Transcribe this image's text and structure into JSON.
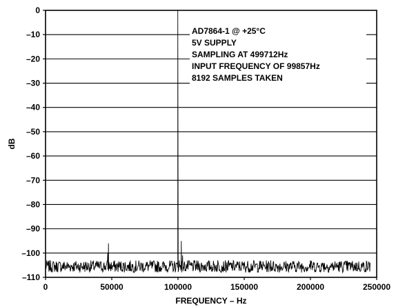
{
  "chart_data": {
    "type": "line",
    "title": "",
    "xlabel": "FREQUENCY – Hz",
    "ylabel": "dB",
    "xlim": [
      0,
      250000
    ],
    "ylim": [
      -110,
      0
    ],
    "grid": "horizontal",
    "x_ticks": [
      0,
      50000,
      100000,
      150000,
      200000,
      250000
    ],
    "x_tick_labels": [
      "0",
      "50000",
      "100000",
      "150000",
      "200000",
      "250000"
    ],
    "y_ticks": [
      0,
      -10,
      -20,
      -30,
      -40,
      -50,
      -60,
      -70,
      -80,
      -90,
      -100,
      -110
    ],
    "y_tick_labels": [
      "0",
      "–10",
      "–20",
      "–30",
      "–40",
      "–50",
      "–60",
      "–70",
      "–80",
      "–90",
      "–100",
      "–110"
    ],
    "annotations": [
      "AD7864-1 @ +25°C",
      "5V SUPPLY",
      "SAMPLING AT 499712Hz",
      "INPUT FREQUENCY OF 99857Hz",
      "8192 SAMPLES TAKEN"
    ],
    "noise_floor_db": [
      -108,
      -103
    ],
    "series": [
      {
        "points": [
          [
            0,
            -106
          ],
          [
            10000,
            -104
          ],
          [
            20000,
            -105
          ],
          [
            30000,
            -104
          ],
          [
            40000,
            -105
          ],
          [
            47000,
            -100
          ],
          [
            47500,
            -96
          ],
          [
            48000,
            -104
          ],
          [
            60000,
            -104
          ],
          [
            70000,
            -105
          ],
          [
            80000,
            -104
          ],
          [
            90000,
            -105
          ],
          [
            99857,
            0
          ],
          [
            101000,
            -103
          ],
          [
            102500,
            -95
          ],
          [
            103500,
            -101
          ],
          [
            110000,
            -104
          ],
          [
            120000,
            -105
          ],
          [
            130000,
            -103
          ],
          [
            140000,
            -104
          ],
          [
            150000,
            -104
          ],
          [
            160000,
            -105
          ],
          [
            170000,
            -103
          ],
          [
            180000,
            -104
          ],
          [
            190000,
            -104
          ],
          [
            200000,
            -103
          ],
          [
            210000,
            -104
          ],
          [
            220000,
            -104
          ],
          [
            230000,
            -104
          ],
          [
            240000,
            -105
          ],
          [
            245000,
            -104
          ]
        ]
      }
    ]
  }
}
